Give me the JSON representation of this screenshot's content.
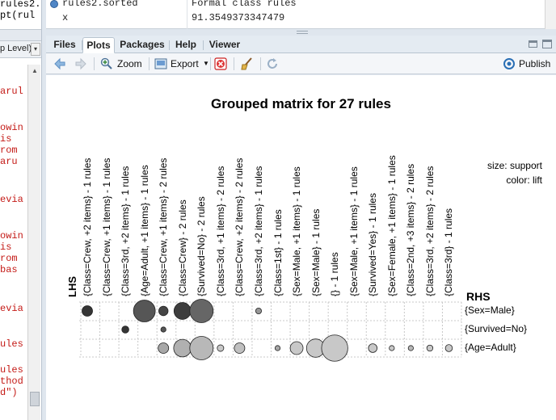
{
  "editor": {
    "top_lines": [
      "rules2.sorted",
      "pt(rul"
    ],
    "toplevel_label": "p Level)",
    "code_lines": [
      "arul",
      "owin",
      "is",
      "rom",
      "aru",
      "evia",
      "owin",
      "is",
      "rom",
      "bas",
      "evia",
      "ules",
      "ules",
      "thod",
      "d\")"
    ]
  },
  "environment": {
    "rows": [
      {
        "name": "rules2.sorted",
        "value": "Formal class rules"
      },
      {
        "name": "x",
        "value": "91.3549373347479"
      }
    ]
  },
  "tabs": [
    "Files",
    "Plots",
    "Packages",
    "Help",
    "Viewer"
  ],
  "active_tab": "Plots",
  "toolbar": {
    "zoom_label": "Zoom",
    "export_label": "Export",
    "publish_label": "Publish"
  },
  "icons": [
    "back-arrow-icon",
    "forward-arrow-icon",
    "zoom-icon",
    "export-icon",
    "remove-plot-icon",
    "clear-all-icon",
    "refresh-icon",
    "publish-icon"
  ],
  "chart_data": {
    "type": "grouped matrix",
    "title": "Grouped matrix for 27 rules",
    "lhs_axis_title": "LHS",
    "rhs_axis_title": "RHS",
    "legend": [
      "size: support",
      "color: lift"
    ],
    "lhs": [
      "{Class=Crew, +2 items} - 1 rules",
      "{Class=Crew, +1 items} - 1 rules",
      "{Class=3rd, +2 items} - 1 rules",
      "{Age=Adult, +1 items} - 1 rules",
      "{Class=Crew, +1 items} - 2 rules",
      "{Class=Crew} - 2 rules",
      "{Survived=No} - 2 rules",
      "{Class=3rd, +1 items} - 2 rules",
      "{Class=Crew, +2 items} - 2 rules",
      "{Class=3rd, +2 items} - 1 rules",
      "{Class=1st} - 1 rules",
      "{Sex=Male, +1 items} - 1 rules",
      "{Sex=Male} - 1 rules",
      "{} - 1 rules",
      "{Sex=Male, +1 items} - 1 rules",
      "{Survived=Yes} - 1 rules",
      "{Sex=Female, +1 items} - 1 rules",
      "{Class=2nd, +3 items} - 2 rules",
      "{Class=3rd, +2 items} - 2 rules",
      "{Class=3rd} - 1 rules"
    ],
    "rhs": [
      "{Sex=Male}",
      "{Survived=No}",
      "{Age=Adult}"
    ],
    "cells": [
      {
        "row": 0,
        "col": 0,
        "support": 0.45,
        "lift": 1.9
      },
      {
        "row": 0,
        "col": 3,
        "support": 0.93,
        "lift": 1.7
      },
      {
        "row": 0,
        "col": 4,
        "support": 0.4,
        "lift": 1.8
      },
      {
        "row": 0,
        "col": 5,
        "support": 0.72,
        "lift": 1.85
      },
      {
        "row": 0,
        "col": 6,
        "support": 1.0,
        "lift": 1.6
      },
      {
        "row": 0,
        "col": 9,
        "support": 0.25,
        "lift": 1.3
      },
      {
        "row": 1,
        "col": 2,
        "support": 0.3,
        "lift": 1.9
      },
      {
        "row": 1,
        "col": 4,
        "support": 0.2,
        "lift": 1.7
      },
      {
        "row": 2,
        "col": 4,
        "support": 0.45,
        "lift": 1.2
      },
      {
        "row": 2,
        "col": 5,
        "support": 0.75,
        "lift": 1.15
      },
      {
        "row": 2,
        "col": 6,
        "support": 1.0,
        "lift": 1.1
      },
      {
        "row": 2,
        "col": 7,
        "support": 0.28,
        "lift": 1.0
      },
      {
        "row": 2,
        "col": 8,
        "support": 0.45,
        "lift": 1.05
      },
      {
        "row": 2,
        "col": 10,
        "support": 0.2,
        "lift": 1.2
      },
      {
        "row": 2,
        "col": 11,
        "support": 0.55,
        "lift": 1.0
      },
      {
        "row": 2,
        "col": 12,
        "support": 0.78,
        "lift": 1.0
      },
      {
        "row": 2,
        "col": 13,
        "support": 1.12,
        "lift": 1.0
      },
      {
        "row": 2,
        "col": 15,
        "support": 0.37,
        "lift": 1.0
      },
      {
        "row": 2,
        "col": 16,
        "support": 0.2,
        "lift": 1.0
      },
      {
        "row": 2,
        "col": 17,
        "support": 0.2,
        "lift": 1.1
      },
      {
        "row": 2,
        "col": 18,
        "support": 0.26,
        "lift": 1.0
      },
      {
        "row": 2,
        "col": 19,
        "support": 0.3,
        "lift": 1.0
      }
    ]
  }
}
